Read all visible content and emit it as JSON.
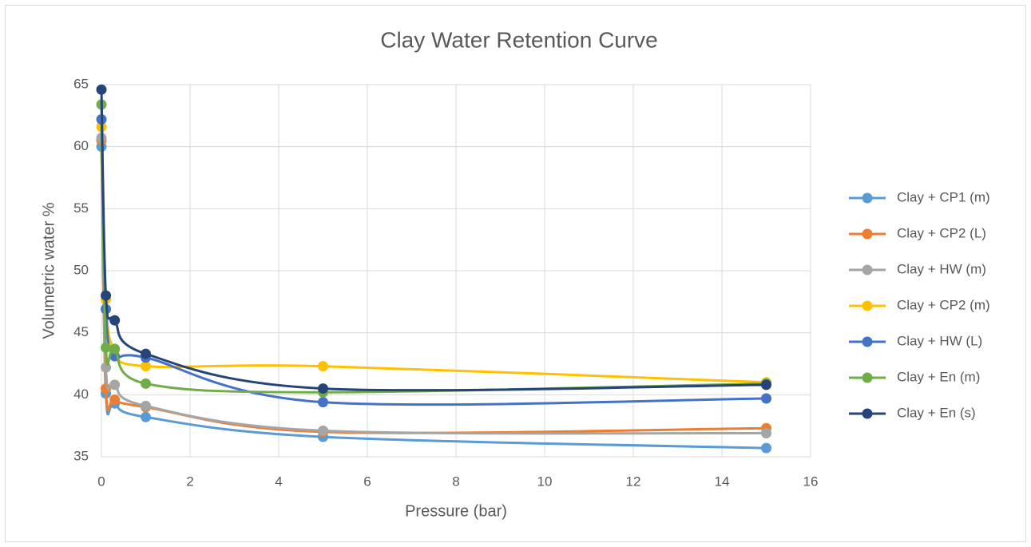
{
  "chart_data": {
    "type": "line",
    "title": "Clay Water Retention Curve",
    "x_label": "Pressure (bar)",
    "y_label": "Volumetric water %",
    "x": [
      0,
      0.1,
      0.3,
      1,
      5,
      15
    ],
    "series": [
      {
        "name": "Clay + CP1 (m)",
        "color": "#5b9bd5",
        "values": [
          60.0,
          40.1,
          39.3,
          38.2,
          36.6,
          35.7
        ]
      },
      {
        "name": "Clay + CP2 (L)",
        "color": "#ed7d31",
        "values": [
          60.5,
          40.5,
          39.6,
          39.0,
          37.0,
          37.3
        ]
      },
      {
        "name": "Clay + HW (m)",
        "color": "#a5a5a5",
        "values": [
          60.7,
          42.2,
          40.8,
          39.1,
          37.1,
          36.9
        ]
      },
      {
        "name": "Clay + CP2 (m)",
        "color": "#ffc000",
        "values": [
          61.6,
          47.7,
          43.6,
          42.3,
          42.3,
          41.0
        ]
      },
      {
        "name": "Clay + HW (L)",
        "color": "#4472c4",
        "values": [
          62.2,
          46.9,
          43.1,
          43.0,
          39.4,
          39.7
        ]
      },
      {
        "name": "Clay + En (m)",
        "color": "#70ad47",
        "values": [
          63.4,
          43.8,
          43.7,
          40.9,
          40.2,
          40.9
        ]
      },
      {
        "name": "Clay + En (s)",
        "color": "#264478",
        "values": [
          64.6,
          48.0,
          46.0,
          43.3,
          40.5,
          40.8
        ]
      }
    ],
    "xlim": [
      0,
      16
    ],
    "xticks": [
      0,
      2,
      4,
      6,
      8,
      10,
      12,
      14,
      16
    ],
    "ylim": [
      35,
      65
    ],
    "yticks": [
      35,
      40,
      45,
      50,
      55,
      60,
      65
    ],
    "grid": true,
    "legend": "right"
  }
}
